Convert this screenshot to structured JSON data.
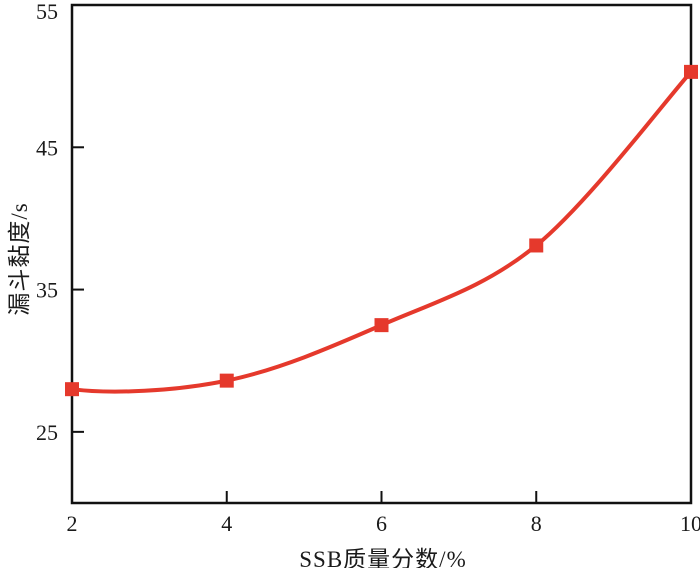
{
  "chart_data": {
    "type": "line",
    "title": "",
    "xlabel": "SSB质量分数/%",
    "ylabel": "漏斗黏度/s",
    "x": [
      2,
      4,
      6,
      8,
      10
    ],
    "values": [
      28.0,
      28.6,
      32.5,
      38.1,
      50.3
    ],
    "xlim": [
      2,
      10
    ],
    "ylim": [
      20,
      55
    ],
    "xticks": [
      2,
      4,
      6,
      8,
      10
    ],
    "yticks": [
      25,
      35,
      45,
      55
    ],
    "grid": false,
    "legend": "none",
    "smooth": true,
    "initial_dip": true,
    "marker": "square",
    "line_color": "#e5392c",
    "axis_color": "#111111",
    "text_color": "#1a1a1a",
    "background": "#ffffff"
  }
}
